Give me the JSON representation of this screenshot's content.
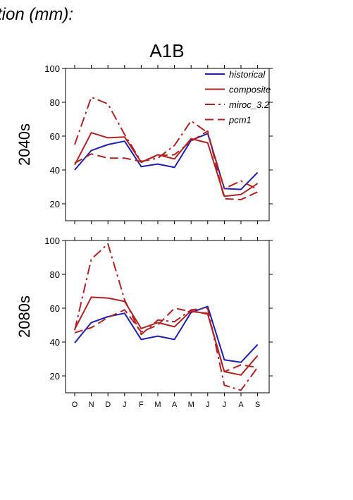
{
  "header": {
    "title": "tion (mm):"
  },
  "scenario": {
    "title": "A1B"
  },
  "chart_data": {
    "type": "line",
    "categories": [
      "O",
      "N",
      "D",
      "J",
      "F",
      "M",
      "A",
      "M",
      "J",
      "J",
      "A",
      "S"
    ],
    "ylim": [
      10,
      100
    ],
    "yticks": [
      20,
      40,
      60,
      80,
      100
    ],
    "legend_position": "top-right",
    "grid": false,
    "series_styles": [
      {
        "name": "historical",
        "color": "#1f1fb4",
        "dash": "solid"
      },
      {
        "name": "composite",
        "color": "#b22222",
        "dash": "solid"
      },
      {
        "name": "miroc_3.2",
        "color": "#b22222",
        "dash": "dashdot"
      },
      {
        "name": "pcm1",
        "color": "#b22222",
        "dash": "dashed"
      }
    ],
    "panels": [
      {
        "ylabel": "2040s",
        "series": [
          {
            "name": "historical",
            "values": [
              40,
              51.5,
              55,
              57,
              42,
              43.5,
              41.5,
              57.5,
              61.5,
              29,
              28.5,
              38.5
            ]
          },
          {
            "name": "composite",
            "values": [
              43,
              62,
              59,
              59.5,
              44.5,
              49,
              46.5,
              58.5,
              56,
              24.5,
              25.5,
              32
            ]
          },
          {
            "name": "miroc_3.2",
            "values": [
              55,
              83,
              79,
              61,
              45,
              47,
              54.5,
              69,
              62,
              29,
              33.5,
              28.5
            ]
          },
          {
            "name": "pcm1",
            "values": [
              44,
              49.5,
              47,
              47,
              45,
              48.5,
              49,
              57,
              63,
              23,
              22.5,
              27
            ]
          }
        ]
      },
      {
        "ylabel": "2080s",
        "series": [
          {
            "name": "historical",
            "values": [
              39.5,
              51.5,
              55,
              57,
              41.5,
              43.5,
              41.5,
              57.5,
              61,
              29.5,
              28,
              38.5
            ]
          },
          {
            "name": "composite",
            "values": [
              47.5,
              66.5,
              66,
              64,
              48,
              51.5,
              49,
              58.5,
              56.5,
              22.5,
              20.5,
              32
            ]
          },
          {
            "name": "miroc_3.2",
            "values": [
              47,
              89,
              98,
              65,
              44.5,
              53,
              52,
              59,
              60,
              14.5,
              11.5,
              25
            ]
          },
          {
            "name": "pcm1",
            "values": [
              45.5,
              48.5,
              54.5,
              59,
              46,
              50,
              60,
              58,
              57,
              22.5,
              26.5,
              25
            ]
          }
        ]
      }
    ]
  }
}
